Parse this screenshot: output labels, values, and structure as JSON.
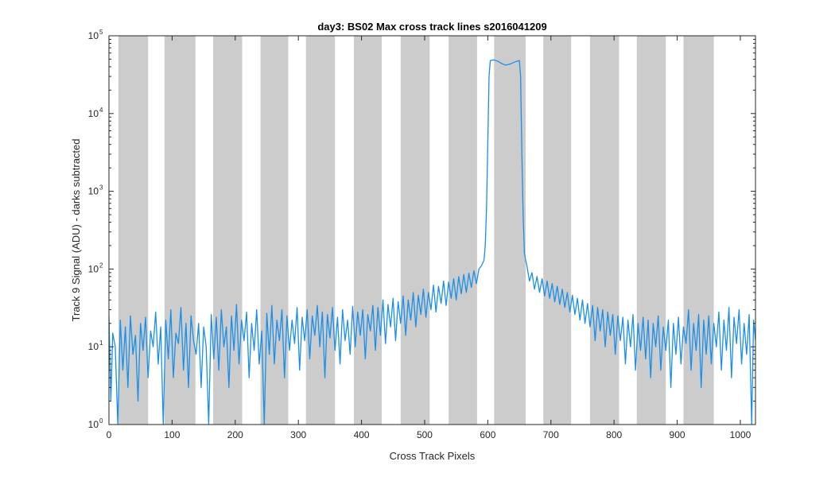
{
  "chart_data": {
    "type": "line",
    "title": "day3: BS02  Max cross track lines  s2016041209",
    "xlabel": "Cross Track Pixels",
    "ylabel": "Track 9 Signal (ADU) - darks subtracted",
    "xlim": [
      0,
      1024
    ],
    "ylim": [
      1,
      100000
    ],
    "yscale": "log",
    "grid": false,
    "x_ticks": [
      0,
      100,
      200,
      300,
      400,
      500,
      600,
      700,
      800,
      900,
      1000
    ],
    "x_tick_labels": [
      "0",
      "100",
      "200",
      "300",
      "400",
      "500",
      "600",
      "700",
      "800",
      "900",
      "1000"
    ],
    "y_ticks": [
      1,
      10,
      100,
      1000,
      10000,
      100000
    ],
    "y_tick_labels": [
      {
        "base": "10",
        "exp": "0"
      },
      {
        "base": "10",
        "exp": "1"
      },
      {
        "base": "10",
        "exp": "2"
      },
      {
        "base": "10",
        "exp": "3"
      },
      {
        "base": "10",
        "exp": "4"
      },
      {
        "base": "10",
        "exp": "5"
      }
    ],
    "line_color": "#1a8fe8",
    "band_color": "#cccccc",
    "shaded_bands": [
      [
        15,
        62
      ],
      [
        88,
        137
      ],
      [
        165,
        211
      ],
      [
        240,
        284
      ],
      [
        312,
        358
      ],
      [
        388,
        432
      ],
      [
        462,
        508
      ],
      [
        538,
        583
      ],
      [
        610,
        660
      ],
      [
        688,
        732
      ],
      [
        762,
        808
      ],
      [
        836,
        882
      ],
      [
        910,
        958
      ]
    ],
    "series": [
      {
        "points": [
          [
            0,
            25
          ],
          [
            3,
            2
          ],
          [
            6,
            15
          ],
          [
            10,
            10
          ],
          [
            14,
            1
          ],
          [
            18,
            22
          ],
          [
            22,
            5
          ],
          [
            26,
            18
          ],
          [
            30,
            3
          ],
          [
            34,
            25
          ],
          [
            38,
            8
          ],
          [
            42,
            14
          ],
          [
            46,
            2
          ],
          [
            50,
            20
          ],
          [
            54,
            9
          ],
          [
            58,
            24
          ],
          [
            62,
            4
          ],
          [
            66,
            16
          ],
          [
            70,
            10
          ],
          [
            74,
            28
          ],
          [
            78,
            6
          ],
          [
            82,
            18
          ],
          [
            86,
            1
          ],
          [
            90,
            22
          ],
          [
            94,
            7
          ],
          [
            98,
            30
          ],
          [
            102,
            4
          ],
          [
            106,
            15
          ],
          [
            110,
            11
          ],
          [
            114,
            32
          ],
          [
            118,
            5
          ],
          [
            122,
            20
          ],
          [
            126,
            3
          ],
          [
            130,
            25
          ],
          [
            134,
            12
          ],
          [
            138,
            8
          ],
          [
            142,
            20
          ],
          [
            146,
            3
          ],
          [
            150,
            18
          ],
          [
            154,
            10
          ],
          [
            158,
            1
          ],
          [
            162,
            26
          ],
          [
            166,
            7
          ],
          [
            170,
            24
          ],
          [
            174,
            5
          ],
          [
            178,
            30
          ],
          [
            182,
            10
          ],
          [
            186,
            18
          ],
          [
            190,
            3
          ],
          [
            194,
            25
          ],
          [
            198,
            9
          ],
          [
            202,
            35
          ],
          [
            206,
            6
          ],
          [
            210,
            22
          ],
          [
            214,
            12
          ],
          [
            218,
            28
          ],
          [
            222,
            4
          ],
          [
            226,
            20
          ],
          [
            230,
            9
          ],
          [
            234,
            30
          ],
          [
            238,
            6
          ],
          [
            242,
            16
          ],
          [
            246,
            1
          ],
          [
            250,
            27
          ],
          [
            254,
            8
          ],
          [
            258,
            34
          ],
          [
            262,
            6
          ],
          [
            266,
            22
          ],
          [
            270,
            12
          ],
          [
            274,
            30
          ],
          [
            278,
            4
          ],
          [
            282,
            25
          ],
          [
            286,
            9
          ],
          [
            290,
            22
          ],
          [
            294,
            11
          ],
          [
            298,
            32
          ],
          [
            302,
            5
          ],
          [
            306,
            24
          ],
          [
            310,
            12
          ],
          [
            314,
            30
          ],
          [
            318,
            7
          ],
          [
            322,
            25
          ],
          [
            326,
            14
          ],
          [
            330,
            34
          ],
          [
            334,
            10
          ],
          [
            338,
            28
          ],
          [
            342,
            4
          ],
          [
            346,
            26
          ],
          [
            350,
            13
          ],
          [
            354,
            32
          ],
          [
            358,
            9
          ],
          [
            362,
            24
          ],
          [
            366,
            6
          ],
          [
            370,
            30
          ],
          [
            374,
            12
          ],
          [
            378,
            22
          ],
          [
            382,
            8
          ],
          [
            386,
            33
          ],
          [
            390,
            10
          ],
          [
            394,
            28
          ],
          [
            398,
            14
          ],
          [
            402,
            30
          ],
          [
            406,
            7
          ],
          [
            410,
            26
          ],
          [
            414,
            16
          ],
          [
            418,
            34
          ],
          [
            422,
            9
          ],
          [
            426,
            32
          ],
          [
            430,
            14
          ],
          [
            434,
            40
          ],
          [
            438,
            11
          ],
          [
            442,
            35
          ],
          [
            446,
            18
          ],
          [
            450,
            42
          ],
          [
            454,
            12
          ],
          [
            458,
            38
          ],
          [
            462,
            20
          ],
          [
            466,
            45
          ],
          [
            470,
            14
          ],
          [
            474,
            40
          ],
          [
            478,
            22
          ],
          [
            482,
            50
          ],
          [
            486,
            18
          ],
          [
            490,
            46
          ],
          [
            494,
            26
          ],
          [
            498,
            55
          ],
          [
            502,
            24
          ],
          [
            506,
            50
          ],
          [
            510,
            30
          ],
          [
            514,
            62
          ],
          [
            518,
            28
          ],
          [
            522,
            60
          ],
          [
            526,
            36
          ],
          [
            530,
            70
          ],
          [
            534,
            34
          ],
          [
            538,
            68
          ],
          [
            542,
            42
          ],
          [
            546,
            75
          ],
          [
            550,
            40
          ],
          [
            554,
            80
          ],
          [
            558,
            48
          ],
          [
            562,
            85
          ],
          [
            566,
            50
          ],
          [
            570,
            88
          ],
          [
            574,
            58
          ],
          [
            578,
            95
          ],
          [
            582,
            65
          ],
          [
            586,
            100
          ],
          [
            590,
            110
          ],
          [
            594,
            130
          ],
          [
            596,
            200
          ],
          [
            598,
            600
          ],
          [
            600,
            4000
          ],
          [
            602,
            30000
          ],
          [
            604,
            48000
          ],
          [
            610,
            49000
          ],
          [
            616,
            47000
          ],
          [
            622,
            44000
          ],
          [
            628,
            42000
          ],
          [
            634,
            43000
          ],
          [
            640,
            45000
          ],
          [
            646,
            47000
          ],
          [
            650,
            48000
          ],
          [
            652,
            30000
          ],
          [
            654,
            3000
          ],
          [
            656,
            500
          ],
          [
            658,
            160
          ],
          [
            660,
            130
          ],
          [
            662,
            110
          ],
          [
            666,
            70
          ],
          [
            670,
            90
          ],
          [
            674,
            55
          ],
          [
            678,
            80
          ],
          [
            682,
            50
          ],
          [
            686,
            75
          ],
          [
            690,
            45
          ],
          [
            694,
            70
          ],
          [
            698,
            42
          ],
          [
            702,
            65
          ],
          [
            706,
            38
          ],
          [
            710,
            60
          ],
          [
            714,
            35
          ],
          [
            718,
            55
          ],
          [
            722,
            32
          ],
          [
            726,
            50
          ],
          [
            730,
            28
          ],
          [
            734,
            46
          ],
          [
            738,
            26
          ],
          [
            742,
            42
          ],
          [
            746,
            22
          ],
          [
            750,
            40
          ],
          [
            754,
            20
          ],
          [
            758,
            36
          ],
          [
            762,
            18
          ],
          [
            766,
            34
          ],
          [
            770,
            12
          ],
          [
            774,
            32
          ],
          [
            778,
            16
          ],
          [
            782,
            30
          ],
          [
            786,
            10
          ],
          [
            790,
            28
          ],
          [
            794,
            14
          ],
          [
            798,
            26
          ],
          [
            802,
            8
          ],
          [
            806,
            25
          ],
          [
            810,
            12
          ],
          [
            814,
            24
          ],
          [
            818,
            6
          ],
          [
            822,
            22
          ],
          [
            826,
            10
          ],
          [
            830,
            26
          ],
          [
            834,
            5
          ],
          [
            838,
            20
          ],
          [
            842,
            9
          ],
          [
            846,
            24
          ],
          [
            850,
            7
          ],
          [
            854,
            22
          ],
          [
            858,
            4
          ],
          [
            862,
            20
          ],
          [
            866,
            10
          ],
          [
            870,
            25
          ],
          [
            874,
            5
          ],
          [
            878,
            18
          ],
          [
            882,
            9
          ],
          [
            886,
            22
          ],
          [
            890,
            3
          ],
          [
            894,
            20
          ],
          [
            898,
            8
          ],
          [
            902,
            24
          ],
          [
            906,
            6
          ],
          [
            910,
            18
          ],
          [
            914,
            11
          ],
          [
            918,
            30
          ],
          [
            922,
            5
          ],
          [
            926,
            20
          ],
          [
            930,
            9
          ],
          [
            934,
            26
          ],
          [
            938,
            3
          ],
          [
            942,
            22
          ],
          [
            946,
            8
          ],
          [
            950,
            25
          ],
          [
            954,
            6
          ],
          [
            958,
            20
          ],
          [
            962,
            10
          ],
          [
            966,
            28
          ],
          [
            970,
            5
          ],
          [
            974,
            22
          ],
          [
            978,
            9
          ],
          [
            982,
            32
          ],
          [
            986,
            4
          ],
          [
            990,
            24
          ],
          [
            994,
            11
          ],
          [
            998,
            30
          ],
          [
            1002,
            6
          ],
          [
            1006,
            20
          ],
          [
            1010,
            8
          ],
          [
            1014,
            26
          ],
          [
            1018,
            1
          ],
          [
            1021,
            22
          ],
          [
            1024,
            12
          ]
        ]
      }
    ]
  }
}
